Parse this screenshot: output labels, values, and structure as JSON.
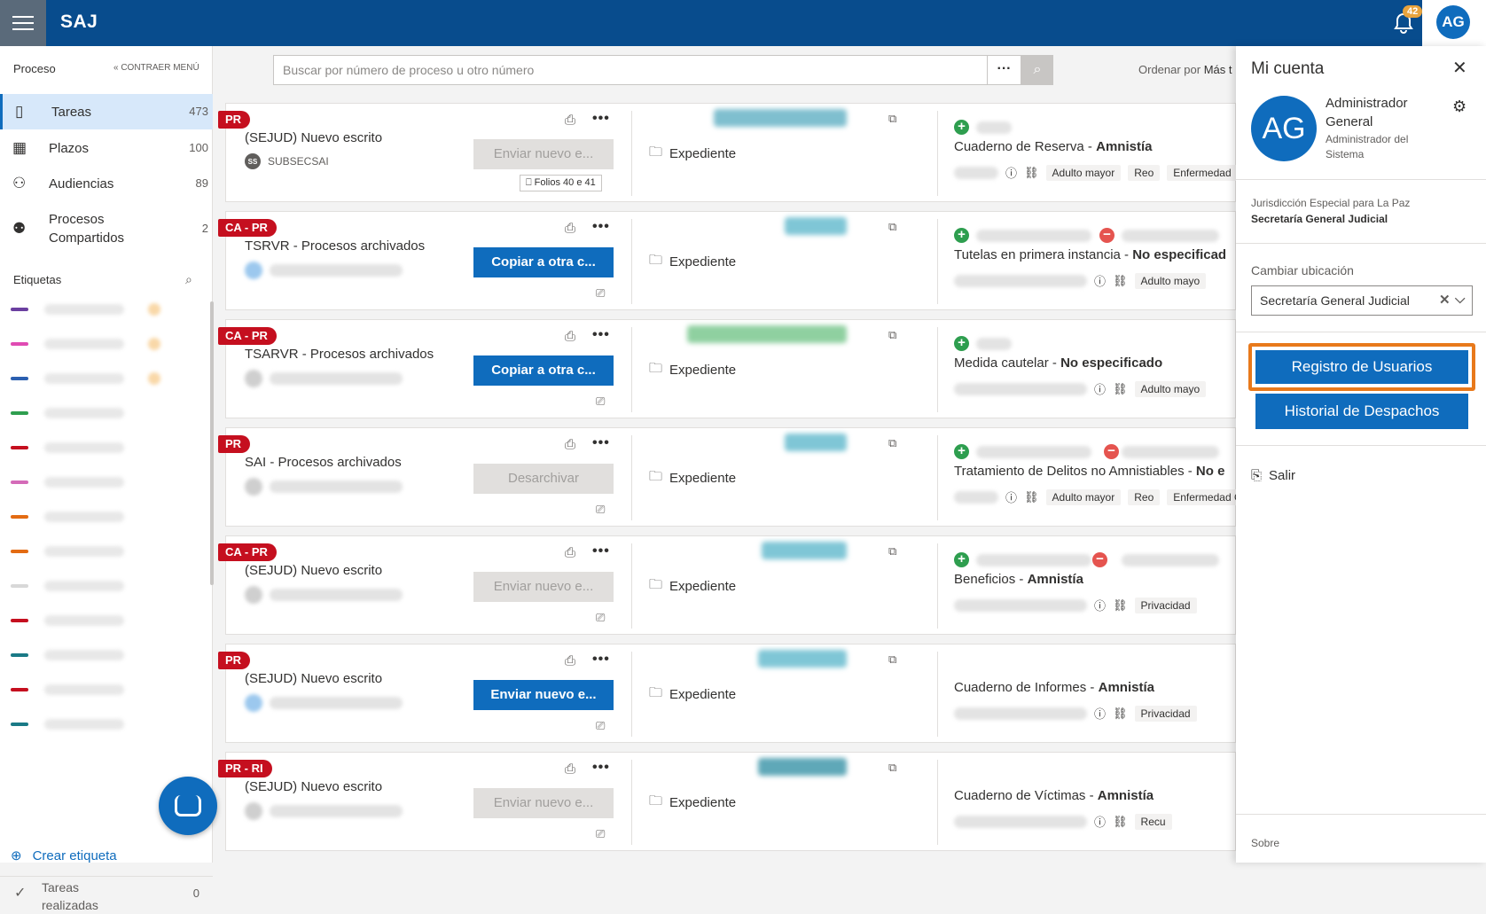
{
  "app": {
    "name": "SAJ",
    "notifications": "42",
    "avatar_initials": "AG"
  },
  "sidebar": {
    "section": "Proceso",
    "collapse": "« CONTRAER MENÚ",
    "items": [
      {
        "label": "Tareas",
        "count": "473"
      },
      {
        "label": "Plazos",
        "count": "100"
      },
      {
        "label": "Audiencias",
        "count": "89"
      },
      {
        "label": "Procesos Compartidos",
        "count": "2"
      }
    ],
    "tags_title": "Etiquetas",
    "tag_colors": [
      "#6b3fa0",
      "#e04bb3",
      "#2b5fb0",
      "#2e9e4f",
      "#c50f1f",
      "#d46bb8",
      "#e36b12",
      "#e36b12",
      "#d8d8d8",
      "#c50f1f",
      "#1a7a86",
      "#c50f1f",
      "#1a7a86"
    ],
    "create_tag": "Crear etiqueta",
    "done": {
      "label": "Tareas realizadas",
      "count": "0"
    }
  },
  "search": {
    "placeholder": "Buscar por número de proceso u otro número",
    "sort_label": "Ordenar por",
    "sort_value": "Más t"
  },
  "cards": [
    {
      "badge": "PR",
      "title": "(SEJUD) Nuevo escrito",
      "sub_avatar": "SS",
      "sub_text": "SUBSECSAI",
      "action": "Enviar nuevo e...",
      "action_primary": false,
      "folios": "Folios 40 e 41",
      "exp": "Expediente",
      "case_type": "Cuaderno de Reserva",
      "case_value": "Amnistía",
      "chips": [
        "Adulto mayor",
        "Reo",
        "Enfermedad"
      ]
    },
    {
      "badge": "CA - PR",
      "title": "TSRVR - Procesos archivados",
      "action": "Copiar a otra c...",
      "action_primary": true,
      "exp": "Expediente",
      "case_type": "Tutelas en primera instancia",
      "case_value": "No especificad",
      "chips": [
        "Adulto mayo"
      ]
    },
    {
      "badge": "CA - PR",
      "title": "TSARVR - Procesos archivados",
      "action": "Copiar a otra c...",
      "action_primary": true,
      "exp": "Expediente",
      "case_type": "Medida cautelar",
      "case_value": "No especificado",
      "chips": [
        "Adulto mayo"
      ]
    },
    {
      "badge": "PR",
      "title": "SAI - Procesos archivados",
      "action": "Desarchivar",
      "action_primary": false,
      "exp": "Expediente",
      "case_type": "Tratamiento de Delitos no Amnistiables",
      "case_value": "No e",
      "chips": [
        "Adulto mayor",
        "Reo",
        "Enfermedad Grave"
      ]
    },
    {
      "badge": "CA - PR",
      "title": "(SEJUD) Nuevo escrito",
      "action": "Enviar nuevo e...",
      "action_primary": false,
      "exp": "Expediente",
      "case_type": "Beneficios",
      "case_value": "Amnistía",
      "chips": [
        "Privacidad"
      ]
    },
    {
      "badge": "PR",
      "title": "(SEJUD) Nuevo escrito",
      "action": "Enviar nuevo e...",
      "action_primary": true,
      "exp": "Expediente",
      "case_type": "Cuaderno de Informes",
      "case_value": "Amnistía",
      "chips": [
        "Privacidad"
      ]
    },
    {
      "badge": "PR - RI",
      "title": "(SEJUD) Nuevo escrito",
      "action": "Enviar nuevo e...",
      "action_primary": false,
      "exp": "Expediente",
      "case_type": "Cuaderno de Víctimas",
      "case_value": "Amnistía",
      "chips": [
        "Recu"
      ]
    }
  ],
  "account": {
    "title": "Mi cuenta",
    "initials": "AG",
    "name": "Administrador General",
    "role": "Administrador del Sistema",
    "jurisdiction": "Jurisdicción Especial para La Paz",
    "office": "Secretaría General Judicial",
    "location_label": "Cambiar ubicación",
    "location_value": "Secretaría General Judicial",
    "btn_users": "Registro de Usuarios",
    "btn_history": "Historial de Despachos",
    "logout": "Salir",
    "about": "Sobre"
  }
}
